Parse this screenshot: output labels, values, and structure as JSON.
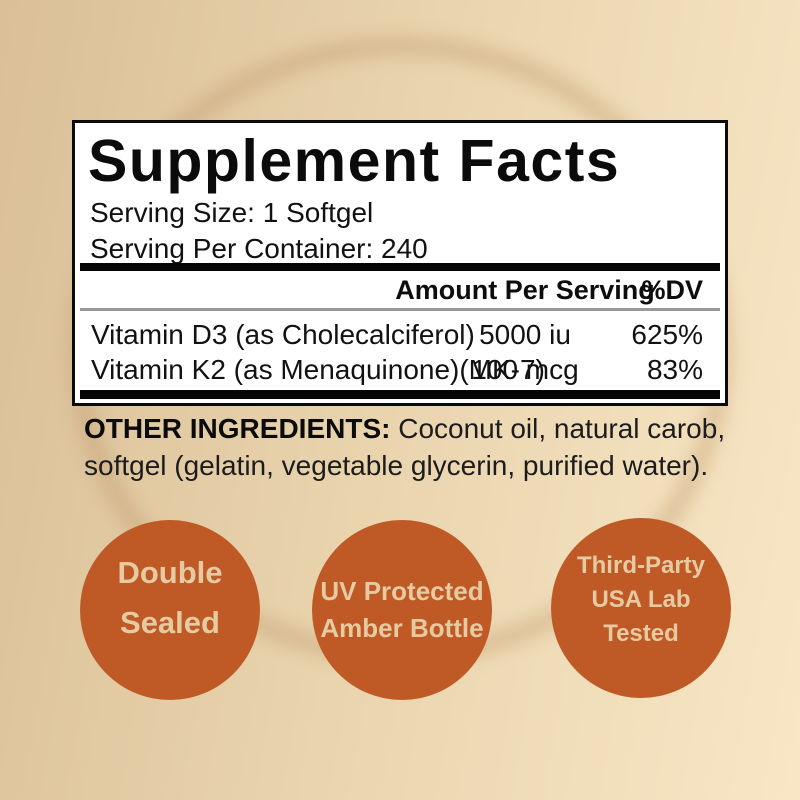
{
  "colors": {
    "background_left": "#dabf97",
    "background_right": "#f8e6c5",
    "panel_background": "#ffffff",
    "panel_border": "#0a0a0a",
    "badge_fill": "#bf5a27",
    "badge_text": "#e6cba2",
    "divider_gray": "#999999"
  },
  "panel": {
    "title": "Supplement Facts",
    "serving_size": "Serving Size: 1 Softgel",
    "servings_per_container": "Serving Per Container: 240",
    "columns": {
      "amount": "Amount Per Serving",
      "dv": "%DV"
    },
    "rows": [
      {
        "name": "Vitamin D3 (as Cholecalciferol)",
        "amount": "5000 iu",
        "dv": "625%"
      },
      {
        "name": "Vitamin K2 (as Menaquinone)(MK-7)",
        "amount": "100 mcg",
        "dv": "83%"
      }
    ]
  },
  "other_ingredients": {
    "label": "OTHER INGREDIENTS:",
    "text": " Coconut oil, natural carob, softgel (gelatin, vegetable glycerin, purified water)."
  },
  "badges": [
    {
      "lines": [
        "Double",
        "Sealed"
      ]
    },
    {
      "lines": [
        "UV Protected",
        "Amber Bottle"
      ]
    },
    {
      "lines": [
        "Third-Party",
        "USA Lab",
        "Tested"
      ]
    }
  ]
}
